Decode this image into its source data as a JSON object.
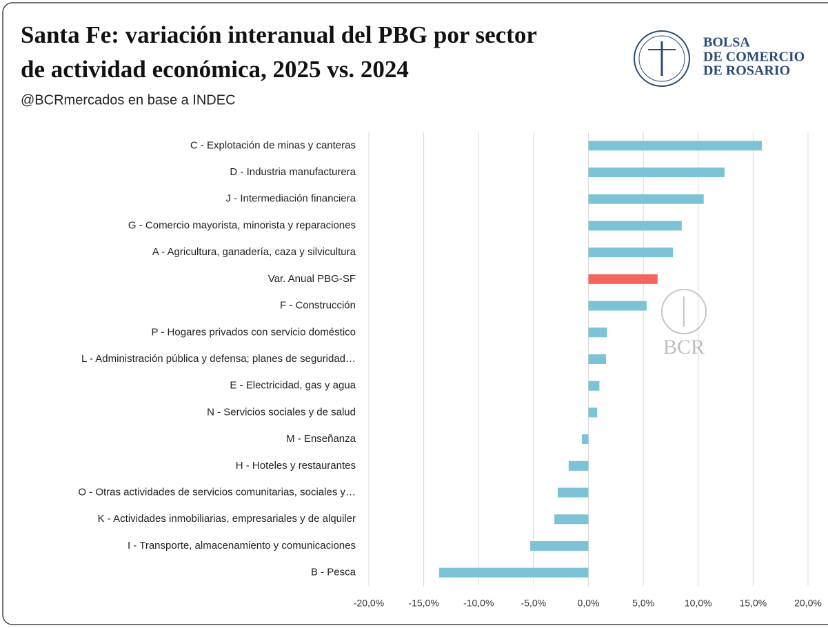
{
  "title": [
    "Santa Fe: variación interanual del PBG por sector",
    "de actividad económica, 2025 vs. 2024"
  ],
  "subtitle": "@BCRmercados en base a INDEC",
  "logo_text": [
    "BOLSA",
    "DE COMERCIO",
    "DE ROSARIO"
  ],
  "watermark": "BCR",
  "chart_data": {
    "type": "hbar",
    "categories": [
      "C - Explotación de minas y canteras",
      "D - Industria manufacturera",
      "J - Intermediación financiera",
      "G - Comercio mayorista, minorista y reparaciones",
      "A - Agricultura, ganadería, caza y silvicultura",
      "Var. Anual PBG-SF",
      "F - Construcción",
      "P - Hogares privados con servicio doméstico",
      "L - Administración pública y defensa; planes de seguridad…",
      "E - Electricidad, gas y agua",
      "N - Servicios sociales y de salud",
      "M - Enseñanza",
      "H - Hoteles y restaurantes",
      "O - Otras actividades de servicios comunitarias, sociales y…",
      "K - Actividades inmobiliarias, empresariales y de alquiler",
      "I - Transporte, almacenamiento y comunicaciones",
      "B - Pesca"
    ],
    "values": [
      15.8,
      12.4,
      10.5,
      8.5,
      7.7,
      6.3,
      5.3,
      1.7,
      1.6,
      1.0,
      0.8,
      -0.6,
      -1.8,
      -2.8,
      -3.1,
      -5.3,
      -13.6
    ],
    "colors": [
      "#7dc3d7",
      "#7dc3d7",
      "#7dc3d7",
      "#7dc3d7",
      "#7dc3d7",
      "#f2665c",
      "#7dc3d7",
      "#7dc3d7",
      "#7dc3d7",
      "#7dc3d7",
      "#7dc3d7",
      "#7dc3d7",
      "#7dc3d7",
      "#7dc3d7",
      "#7dc3d7",
      "#7dc3d7",
      "#7dc3d7"
    ],
    "xlim": [
      -20,
      20
    ],
    "xticks": [
      {
        "value": -20,
        "label": "-20,0%"
      },
      {
        "value": -15,
        "label": "-15,0%"
      },
      {
        "value": -10,
        "label": "-10,0%"
      },
      {
        "value": -5,
        "label": "-5,0%"
      },
      {
        "value": 0,
        "label": "0,0%"
      },
      {
        "value": 5,
        "label": "5,0%"
      },
      {
        "value": 10,
        "label": "10,0%"
      },
      {
        "value": 15,
        "label": "15,0%"
      },
      {
        "value": 20,
        "label": "20,0%"
      }
    ],
    "grid": true
  }
}
